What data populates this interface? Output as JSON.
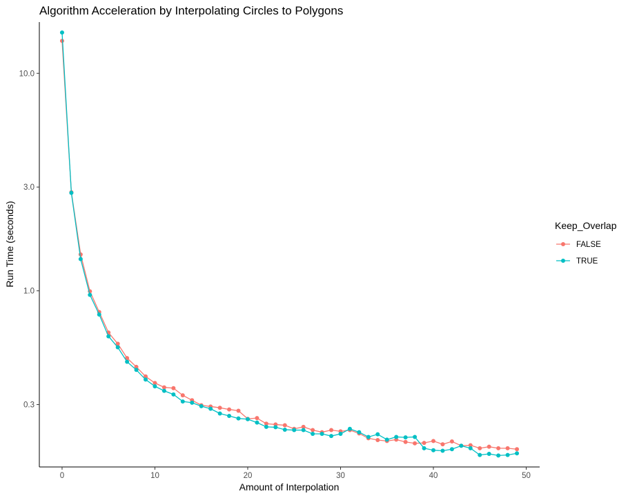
{
  "chart_data": {
    "type": "line",
    "title": "Algorithm Acceleration by Interpolating Circles to Polygons",
    "xlabel": "Amount of Interpolation",
    "ylabel": "Run Time (seconds)",
    "y_scale": "log10",
    "xlim": [
      -2.45,
      51.45
    ],
    "ylim": [
      0.155,
      17.2
    ],
    "x_ticks": [
      0,
      10,
      20,
      30,
      40,
      50
    ],
    "x_tick_labels": [
      "0",
      "10",
      "20",
      "30",
      "40",
      "50"
    ],
    "y_ticks": [
      0.3,
      1.0,
      3.0,
      10.0
    ],
    "y_tick_labels": [
      "0.3",
      "1.0",
      "3.0",
      "10.0"
    ],
    "grid": false,
    "legend": {
      "title": "Keep_Overlap",
      "position": "right"
    },
    "x": [
      0,
      1,
      2,
      3,
      4,
      5,
      6,
      7,
      8,
      9,
      10,
      11,
      12,
      13,
      14,
      15,
      16,
      17,
      18,
      19,
      20,
      21,
      22,
      23,
      24,
      25,
      26,
      27,
      28,
      29,
      30,
      31,
      32,
      33,
      34,
      35,
      36,
      37,
      38,
      39,
      40,
      41,
      42,
      43,
      44,
      45,
      46,
      47,
      48,
      49
    ],
    "series": [
      {
        "name": "FALSE",
        "color": "#F8766D",
        "values": [
          14.1,
          2.84,
          1.47,
          0.995,
          0.799,
          0.643,
          0.571,
          0.491,
          0.447,
          0.404,
          0.377,
          0.36,
          0.357,
          0.331,
          0.314,
          0.298,
          0.294,
          0.29,
          0.285,
          0.281,
          0.258,
          0.26,
          0.245,
          0.243,
          0.241,
          0.232,
          0.237,
          0.229,
          0.224,
          0.229,
          0.226,
          0.229,
          0.221,
          0.21,
          0.206,
          0.204,
          0.207,
          0.202,
          0.199,
          0.2,
          0.204,
          0.197,
          0.203,
          0.194,
          0.195,
          0.189,
          0.192,
          0.189,
          0.189,
          0.187
        ]
      },
      {
        "name": "TRUE",
        "color": "#00BFC4",
        "values": [
          15.4,
          2.82,
          1.4,
          0.958,
          0.778,
          0.618,
          0.55,
          0.472,
          0.433,
          0.391,
          0.364,
          0.347,
          0.334,
          0.31,
          0.306,
          0.295,
          0.287,
          0.273,
          0.266,
          0.259,
          0.257,
          0.248,
          0.237,
          0.236,
          0.23,
          0.229,
          0.229,
          0.22,
          0.22,
          0.215,
          0.22,
          0.232,
          0.224,
          0.213,
          0.219,
          0.207,
          0.213,
          0.212,
          0.213,
          0.189,
          0.185,
          0.184,
          0.187,
          0.194,
          0.189,
          0.176,
          0.178,
          0.175,
          0.176,
          0.179
        ]
      }
    ]
  }
}
